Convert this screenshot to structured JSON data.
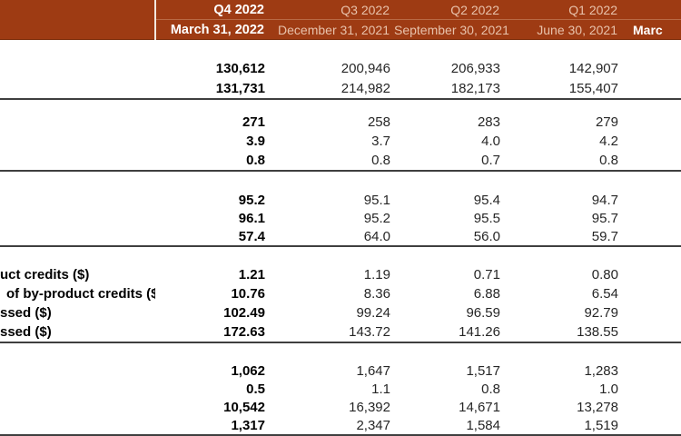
{
  "colors": {
    "header_bg": "#9e3b13",
    "header_bottom_edge": "#7c2f0e",
    "header_highlight_text": "#ffffff",
    "header_dim_text": "#e8c2ab",
    "header_vertical_separator": "#f3e7de",
    "header_row_divider": "#b96a45",
    "section_rule": "#3f3f3f"
  },
  "header": {
    "row1": [
      "",
      "Q4 2022",
      "Q3 2022",
      "Q2 2022",
      "Q1 2022",
      ""
    ],
    "row2": [
      "",
      "March 31, 2022",
      "December 31, 2021",
      "September 30, 2021",
      "June 30, 2021",
      "Marc"
    ]
  },
  "table": {
    "sections": [
      {
        "rows": [
          {
            "label": "",
            "values": [
              "130,612",
              "200,946",
              "206,933",
              "142,907"
            ]
          },
          {
            "label": "",
            "values": [
              "131,731",
              "214,982",
              "182,173",
              "155,407"
            ]
          }
        ]
      },
      {
        "rows": [
          {
            "label": "",
            "values": [
              "271",
              "258",
              "283",
              "279"
            ]
          },
          {
            "label": "",
            "values": [
              "3.9",
              "3.7",
              "4.0",
              "4.2"
            ]
          },
          {
            "label": "",
            "values": [
              "0.8",
              "0.8",
              "0.7",
              "0.8"
            ]
          }
        ]
      },
      {
        "rows": [
          {
            "label": "",
            "values": [
              "95.2",
              "95.1",
              "95.4",
              "94.7"
            ]
          },
          {
            "label": "",
            "values": [
              "96.1",
              "95.2",
              "95.5",
              "95.7"
            ]
          },
          {
            "label": "",
            "values": [
              "57.4",
              "64.0",
              "56.0",
              "59.7"
            ]
          }
        ]
      },
      {
        "rows": [
          {
            "label": "uct credits ($)",
            "values": [
              "1.21",
              "1.19",
              "0.71",
              "0.80"
            ]
          },
          {
            "label": "of by-product credits ($)",
            "values": [
              "10.76",
              "8.36",
              "6.88",
              "6.54"
            ]
          },
          {
            "label": "ssed ($)",
            "values": [
              "102.49",
              "99.24",
              "96.59",
              "92.79"
            ]
          },
          {
            "label": "ssed ($)",
            "values": [
              "172.63",
              "143.72",
              "141.26",
              "138.55"
            ]
          }
        ]
      },
      {
        "rows": [
          {
            "label": "",
            "values": [
              "1,062",
              "1,647",
              "1,517",
              "1,283"
            ]
          },
          {
            "label": "",
            "values": [
              "0.5",
              "1.1",
              "0.8",
              "1.0"
            ]
          },
          {
            "label": "",
            "values": [
              "10,542",
              "16,392",
              "14,671",
              "13,278"
            ]
          },
          {
            "label": "",
            "values": [
              "1,317",
              "2,347",
              "1,584",
              "1,519"
            ]
          }
        ]
      }
    ]
  }
}
